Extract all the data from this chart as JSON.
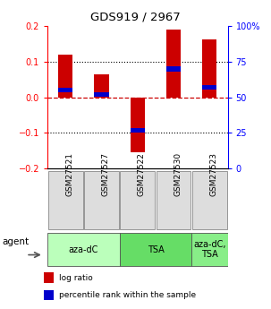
{
  "title": "GDS919 / 2967",
  "samples": [
    "GSM27521",
    "GSM27527",
    "GSM27522",
    "GSM27530",
    "GSM27523"
  ],
  "log_ratios": [
    0.12,
    0.065,
    -0.155,
    0.19,
    0.163
  ],
  "percentile_ranks": [
    55,
    52,
    27,
    70,
    57
  ],
  "ylim_left": [
    -0.2,
    0.2
  ],
  "ylim_right": [
    0,
    100
  ],
  "yticks_left": [
    -0.2,
    -0.1,
    0,
    0.1,
    0.2
  ],
  "yticks_right": [
    0,
    25,
    50,
    75,
    100
  ],
  "bar_color": "#CC0000",
  "percentile_color": "#0000CC",
  "zero_line_color": "#CC0000",
  "grid_color": "#000000",
  "agent_groups": [
    {
      "label": "aza-dC",
      "span": [
        0,
        2
      ],
      "color": "#BBFFBB"
    },
    {
      "label": "TSA",
      "span": [
        2,
        4
      ],
      "color": "#66DD66"
    },
    {
      "label": "aza-dC,\nTSA",
      "span": [
        4,
        5
      ],
      "color": "#88EE88"
    }
  ],
  "agent_label": "agent",
  "legend_items": [
    {
      "label": "log ratio",
      "color": "#CC0000"
    },
    {
      "label": "percentile rank within the sample",
      "color": "#0000CC"
    }
  ],
  "bar_width": 0.4
}
